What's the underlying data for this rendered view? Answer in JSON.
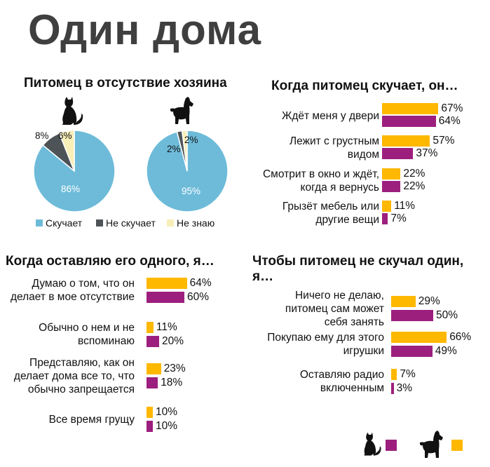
{
  "title": "Один дома",
  "colors": {
    "dog": "#ffb800",
    "cat": "#9c1f7e",
    "pie_bored": "#6dbbd9",
    "pie_not_bored": "#4d5356",
    "pie_dont_know": "#f7eeb8"
  },
  "chart_data": [
    {
      "type": "pie",
      "title": "Питомец в отсутствие хозяина",
      "animal": "cat",
      "categories": [
        "Скучает",
        "Не скучает",
        "Не знаю"
      ],
      "values": [
        86,
        8,
        6
      ],
      "value_labels": [
        "86%",
        "8%",
        "6%"
      ],
      "legend": "bottom"
    },
    {
      "type": "pie",
      "animal": "dog",
      "categories": [
        "Скучает",
        "Не скучает",
        "Не знаю"
      ],
      "values": [
        95,
        2,
        2
      ],
      "value_labels": [
        "95%",
        "2%",
        "2%"
      ],
      "legend": "bottom"
    },
    {
      "type": "bar",
      "orientation": "horizontal",
      "title": "Когда питомец скучает, он…",
      "categories": [
        "Ждёт меня у двери",
        "Лежит с грустным\nвидом",
        "Смотрит в окно и ждёт,\nкогда я вернусь",
        "Грызёт мебель или\nдругие вещи"
      ],
      "series": [
        {
          "animal": "dog",
          "values": [
            67,
            57,
            22,
            11
          ],
          "labels": [
            "67%",
            "57%",
            "22%",
            "11%"
          ]
        },
        {
          "animal": "cat",
          "values": [
            64,
            37,
            22,
            7
          ],
          "labels": [
            "64%",
            "37%",
            "22%",
            "7%"
          ]
        }
      ]
    },
    {
      "type": "bar",
      "orientation": "horizontal",
      "title": "Когда оставляю его одного, я…",
      "categories": [
        "Думаю о том, что он\nделает в мое отсутствие",
        "Обычно о нем и не\nвспоминаю",
        "Представляю, как он\nделает дома все то, что\nобычно запрещается",
        "Все время грущу"
      ],
      "series": [
        {
          "animal": "dog",
          "values": [
            64,
            11,
            23,
            10
          ],
          "labels": [
            "64%",
            "11%",
            "23%",
            "10%"
          ]
        },
        {
          "animal": "cat",
          "values": [
            60,
            20,
            18,
            10
          ],
          "labels": [
            "60%",
            "20%",
            "18%",
            "10%"
          ]
        }
      ]
    },
    {
      "type": "bar",
      "orientation": "horizontal",
      "title": "Чтобы питомец не скучал один,\nя…",
      "categories": [
        "Ничего не делаю,\nпитомец сам может\nсебя занять",
        "Покупаю ему для этого\nигрушки",
        "Оставляю радио\nвключенным"
      ],
      "series": [
        {
          "animal": "dog",
          "values": [
            29,
            66,
            7
          ],
          "labels": [
            "29%",
            "66%",
            "7%"
          ]
        },
        {
          "animal": "cat",
          "values": [
            50,
            49,
            3
          ],
          "labels": [
            "50%",
            "49%",
            "3%"
          ]
        }
      ]
    }
  ]
}
